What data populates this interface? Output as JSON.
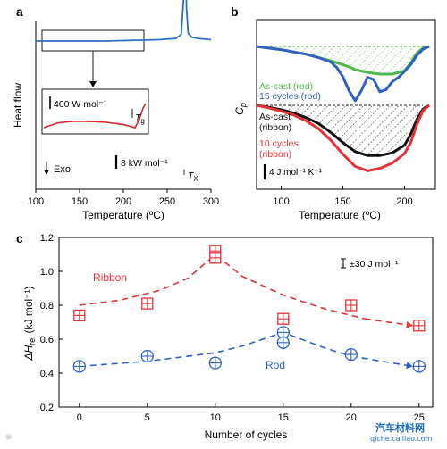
{
  "chart_data": [
    {
      "panel": "a",
      "type": "line",
      "xlabel": "Temperature (ºC)",
      "ylabel": "Heat flow",
      "xlim": [
        100,
        300
      ],
      "xticks": [
        100,
        150,
        200,
        250,
        300
      ],
      "annotations": {
        "exo": "Exo",
        "scale_main": "8 kW mol⁻¹",
        "scale_inset": "400 W mol⁻¹",
        "tg": "T",
        "tg_sub": "g",
        "tx": "T",
        "tx_sub": "X"
      },
      "series": [
        {
          "name": "",
          "color": "#2f6dc0",
          "x": [
            100,
            180,
            240,
            260,
            266,
            269,
            270,
            271,
            272,
            274,
            278,
            285,
            300
          ],
          "y": [
            0.0,
            0.0,
            0.01,
            0.02,
            0.05,
            0.35,
            1.0,
            0.7,
            0.25,
            0.06,
            0.03,
            0.02,
            0.01
          ]
        }
      ],
      "inset": {
        "color": "#d7282f",
        "x": [
          103,
          120,
          140,
          160,
          180,
          200,
          210,
          215,
          220,
          225,
          228
        ],
        "y": [
          0.1,
          0.28,
          0.34,
          0.33,
          0.3,
          0.22,
          0.14,
          0.1,
          0.4,
          0.85,
          1.0
        ]
      }
    },
    {
      "panel": "b",
      "type": "line",
      "xlabel": "Temperature (ºC)",
      "ylabel": "C",
      "ylabel_sub": "p",
      "xlim": [
        80,
        225
      ],
      "xticks": [
        100,
        150,
        200
      ],
      "annotations": {
        "ascast_rod": "As-cast (rod)",
        "cycles_rod": "15 cycles (rod)",
        "ascast_ribbon_1": "As-cast",
        "ascast_ribbon_2": "(ribbon)",
        "cycles_ribbon_1": "10 cycles",
        "cycles_ribbon_2": "(ribbon)",
        "scale": "4 J mol⁻¹ K⁻¹"
      },
      "series": [
        {
          "name": "As-cast (rod)",
          "color": "#4fb848",
          "x": [
            80,
            90,
            100,
            110,
            120,
            130,
            140,
            150,
            155,
            160,
            170,
            180,
            190,
            200,
            205,
            210,
            215,
            220
          ],
          "y": [
            0.0,
            -0.03,
            -0.06,
            -0.1,
            -0.14,
            -0.2,
            -0.26,
            -0.33,
            -0.37,
            -0.42,
            -0.47,
            -0.5,
            -0.5,
            -0.44,
            -0.3,
            -0.12,
            -0.03,
            0.0
          ]
        },
        {
          "name": "15 cycles (rod)",
          "color": "#2f62c0",
          "x": [
            80,
            90,
            100,
            110,
            120,
            130,
            140,
            145,
            150,
            155,
            160,
            165,
            170,
            175,
            180,
            185,
            190,
            195,
            200,
            205,
            210,
            215,
            220
          ],
          "y": [
            0.0,
            -0.03,
            -0.06,
            -0.1,
            -0.14,
            -0.2,
            -0.28,
            -0.38,
            -0.55,
            -0.8,
            -0.98,
            -0.8,
            -0.56,
            -0.6,
            -0.82,
            -0.78,
            -0.64,
            -0.56,
            -0.45,
            -0.33,
            -0.16,
            -0.05,
            0.0
          ]
        },
        {
          "name": "As-cast (ribbon)",
          "color": "#111111",
          "x": [
            80,
            90,
            100,
            110,
            120,
            130,
            140,
            150,
            160,
            170,
            180,
            190,
            200,
            205,
            210,
            215,
            220
          ],
          "y": [
            0.0,
            -0.03,
            -0.07,
            -0.12,
            -0.19,
            -0.28,
            -0.42,
            -0.58,
            -0.72,
            -0.78,
            -0.78,
            -0.74,
            -0.62,
            -0.45,
            -0.22,
            -0.06,
            0.0
          ]
        },
        {
          "name": "10 cycles (ribbon)",
          "color": "#e53238",
          "x": [
            80,
            90,
            100,
            110,
            120,
            130,
            140,
            150,
            160,
            170,
            180,
            190,
            200,
            205,
            210,
            215,
            220
          ],
          "y": [
            0.0,
            -0.04,
            -0.09,
            -0.15,
            -0.24,
            -0.36,
            -0.54,
            -0.76,
            -0.95,
            -1.02,
            -0.98,
            -0.9,
            -0.75,
            -0.58,
            -0.3,
            -0.08,
            0.0
          ]
        }
      ]
    },
    {
      "panel": "c",
      "type": "scatter",
      "xlabel": "Number of cycles",
      "ylabel": "ΔH",
      "ylabel_sub": "rel",
      "ylabel_unit": " (kJ mol⁻¹)",
      "xlim": [
        -1.5,
        26
      ],
      "ylim": [
        0.2,
        1.2
      ],
      "xticks": [
        0,
        5,
        10,
        15,
        20,
        25
      ],
      "yticks": [
        0.2,
        0.4,
        0.6,
        0.8,
        1.0,
        1.2
      ],
      "error_bar_label": "±30 J mol⁻¹",
      "series": [
        {
          "name": "Ribbon",
          "color": "#e53238",
          "points": [
            {
              "x": 0,
              "y": 0.74
            },
            {
              "x": 5,
              "y": 0.81
            },
            {
              "x": 10,
              "y": 1.12
            },
            {
              "x": 10,
              "y": 1.08
            },
            {
              "x": 15,
              "y": 0.72
            },
            {
              "x": 20,
              "y": 0.8
            },
            {
              "x": 25,
              "y": 0.68
            }
          ],
          "trend": {
            "x": [
              0,
              3,
              6,
              8,
              10,
              12,
              15,
              18,
              21,
              25
            ],
            "y": [
              0.8,
              0.83,
              0.89,
              0.96,
              1.1,
              0.97,
              0.86,
              0.78,
              0.72,
              0.68
            ]
          }
        },
        {
          "name": "Rod",
          "color": "#2f62c0",
          "points": [
            {
              "x": 0,
              "y": 0.44
            },
            {
              "x": 5,
              "y": 0.5
            },
            {
              "x": 10,
              "y": 0.46
            },
            {
              "x": 15,
              "y": 0.64
            },
            {
              "x": 15,
              "y": 0.58
            },
            {
              "x": 20,
              "y": 0.51
            },
            {
              "x": 25,
              "y": 0.44
            }
          ],
          "trend": {
            "x": [
              0,
              5,
              10,
              12,
              15,
              18,
              20,
              25
            ],
            "y": [
              0.44,
              0.47,
              0.52,
              0.56,
              0.64,
              0.55,
              0.5,
              0.44
            ]
          }
        }
      ]
    }
  ],
  "panel_labels": {
    "a": "a",
    "b": "b",
    "c": "c"
  },
  "watermarks": {
    "site": "qiche.cailiao.com",
    "cn": "汽车材料网"
  }
}
